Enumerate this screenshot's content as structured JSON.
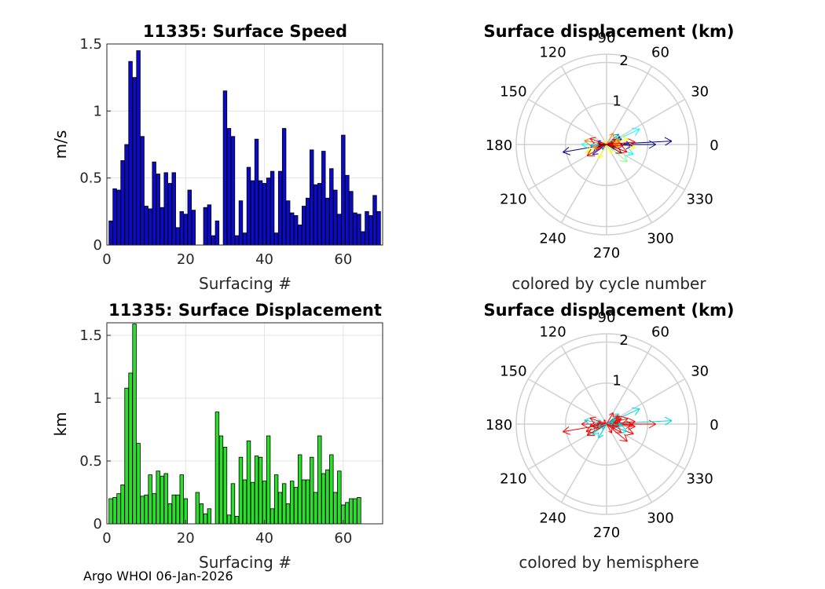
{
  "footer": "Argo WHOI 06-Jan-2026",
  "chart_data": [
    {
      "type": "bar",
      "title": "11335: Surface Speed",
      "xlabel": "Surfacing #",
      "ylabel": "m/s",
      "xlim": [
        0,
        70
      ],
      "ylim": [
        0,
        1.5
      ],
      "xticks": [
        "0",
        "20",
        "40",
        "60"
      ],
      "yticks": [
        "0",
        "0.5",
        "1",
        "1.5"
      ],
      "bar_color": "#0a0ac8",
      "values": [
        0.18,
        0.42,
        0.41,
        0.63,
        0.75,
        1.37,
        1.25,
        1.45,
        0.81,
        0.29,
        0.27,
        0.62,
        0.53,
        0.28,
        0.54,
        0.46,
        0.54,
        0.13,
        0.25,
        0.23,
        0.41,
        0.26,
        null,
        null,
        0.28,
        0.3,
        0.07,
        0.18,
        null,
        1.15,
        0.87,
        0.81,
        0.07,
        0.33,
        0.09,
        0.58,
        0.48,
        0.79,
        0.48,
        0.46,
        0.5,
        0.55,
        0.09,
        0.55,
        0.87,
        0.33,
        0.24,
        0.22,
        0.15,
        0.29,
        0.35,
        0.71,
        0.45,
        0.46,
        0.7,
        0.35,
        0.57,
        0.41,
        0.23,
        0.82,
        0.52,
        0.4,
        0.24,
        0.23,
        0.1,
        0.25,
        0.22,
        0.37,
        0.25
      ]
    },
    {
      "type": "polar",
      "title": "Surface displacement (km)",
      "caption": "colored by cycle number",
      "angle_labels": [
        "0",
        "30",
        "60",
        "90",
        "120",
        "150",
        "180",
        "210",
        "240",
        "270",
        "300",
        "330"
      ],
      "radius_labels": [
        "1",
        "2"
      ],
      "rmax": 2.2,
      "colormap": [
        "#00008b",
        "#0000ff",
        "#0080ff",
        "#00ffff",
        "#80ff80",
        "#ffff00",
        "#ff8000",
        "#ff0000",
        "#8b0000"
      ]
    },
    {
      "type": "bar",
      "title": "11335: Surface Displacement",
      "xlabel": "Surfacing #",
      "ylabel": "km",
      "xlim": [
        0,
        70
      ],
      "ylim": [
        0,
        1.6
      ],
      "xticks": [
        "0",
        "20",
        "40",
        "60"
      ],
      "yticks": [
        "0",
        "0.5",
        "1",
        "1.5"
      ],
      "bar_color": "#2adf2a",
      "values": [
        0.2,
        0.21,
        0.24,
        0.31,
        1.08,
        1.2,
        1.59,
        0.64,
        0.22,
        0.23,
        0.39,
        0.24,
        0.42,
        0.38,
        0.4,
        0.16,
        0.23,
        0.23,
        0.39,
        0.2,
        null,
        null,
        0.25,
        0.16,
        0.08,
        0.12,
        null,
        0.89,
        0.7,
        0.61,
        0.07,
        0.32,
        0.06,
        0.53,
        0.35,
        0.66,
        0.33,
        0.54,
        0.53,
        0.34,
        0.7,
        0.12,
        0.39,
        0.25,
        0.32,
        0.16,
        0.34,
        0.29,
        0.55,
        0.35,
        0.35,
        0.53,
        0.25,
        0.7,
        0.4,
        0.43,
        0.55,
        0.25,
        0.42,
        0.15,
        0.17,
        0.2,
        0.2,
        0.21
      ]
    },
    {
      "type": "polar",
      "title": "Surface displacement (km)",
      "caption": "colored by hemisphere",
      "angle_labels": [
        "0",
        "30",
        "60",
        "90",
        "120",
        "150",
        "180",
        "210",
        "240",
        "270",
        "300",
        "330"
      ],
      "radius_labels": [
        "1",
        "2"
      ],
      "rmax": 2.2,
      "colormap": [
        "#ff0000",
        "#00d8d8"
      ]
    }
  ]
}
